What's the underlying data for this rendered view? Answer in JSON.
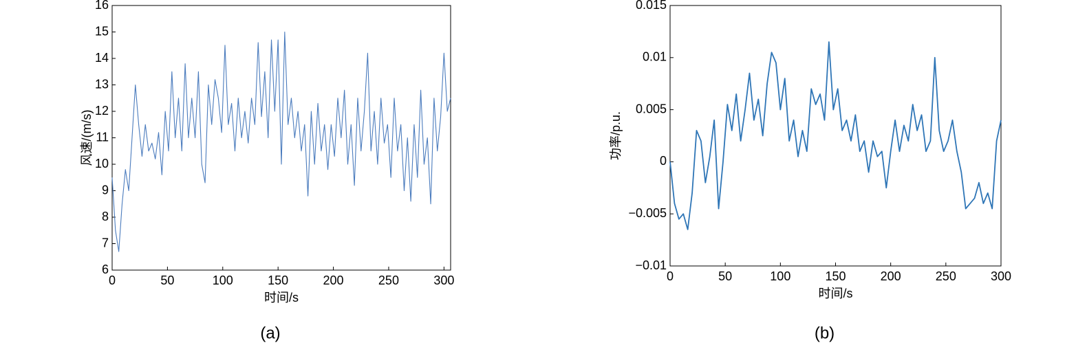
{
  "chart_data": [
    {
      "type": "line",
      "caption": "(a)",
      "xlabel": "时间/s",
      "ylabel": "风速/(m/s)",
      "color": "#4a7bbd",
      "xlim": [
        0,
        306
      ],
      "ylim": [
        6,
        16
      ],
      "xticks": [
        0,
        50,
        100,
        150,
        200,
        250,
        300
      ],
      "yticks": [
        6,
        7,
        8,
        9,
        10,
        11,
        12,
        13,
        14,
        15,
        16
      ],
      "x": [
        0,
        3,
        6,
        9,
        12,
        15,
        18,
        21,
        24,
        27,
        30,
        33,
        36,
        39,
        42,
        45,
        48,
        51,
        54,
        57,
        60,
        63,
        66,
        69,
        72,
        75,
        78,
        81,
        84,
        87,
        90,
        93,
        96,
        99,
        102,
        105,
        108,
        111,
        114,
        117,
        120,
        123,
        126,
        129,
        132,
        135,
        138,
        141,
        144,
        147,
        150,
        153,
        156,
        159,
        162,
        165,
        168,
        171,
        174,
        177,
        180,
        183,
        186,
        189,
        192,
        195,
        198,
        201,
        204,
        207,
        210,
        213,
        216,
        219,
        222,
        225,
        228,
        231,
        234,
        237,
        240,
        243,
        246,
        249,
        252,
        255,
        258,
        261,
        264,
        267,
        270,
        273,
        276,
        279,
        282,
        285,
        288,
        291,
        294,
        297,
        300,
        303,
        306
      ],
      "values": [
        9.5,
        7.5,
        6.7,
        8.5,
        9.8,
        9.0,
        11.0,
        13.0,
        11.5,
        10.3,
        11.5,
        10.5,
        10.8,
        10.2,
        11.2,
        9.6,
        12.0,
        10.5,
        13.5,
        11.0,
        12.5,
        10.5,
        13.8,
        11.0,
        12.5,
        11.0,
        13.5,
        10.0,
        9.3,
        13.0,
        11.5,
        13.2,
        12.5,
        11.2,
        14.5,
        11.5,
        12.3,
        10.5,
        12.5,
        11.0,
        12.0,
        10.8,
        12.5,
        11.5,
        14.6,
        11.8,
        13.5,
        11.0,
        14.7,
        12.0,
        14.7,
        10.0,
        15.0,
        11.5,
        12.5,
        11.0,
        12.0,
        10.5,
        11.5,
        8.8,
        12.0,
        10.0,
        12.3,
        10.5,
        11.5,
        9.8,
        11.5,
        10.3,
        12.5,
        11.0,
        12.8,
        10.0,
        11.5,
        9.2,
        12.5,
        10.5,
        12.0,
        14.2,
        10.5,
        12.0,
        10.0,
        12.5,
        10.8,
        11.5,
        9.5,
        12.5,
        10.5,
        11.5,
        9.0,
        11.0,
        8.6,
        11.5,
        9.5,
        12.8,
        10.0,
        11.0,
        8.5,
        12.5,
        10.5,
        11.8,
        14.2,
        12.0,
        12.5
      ]
    },
    {
      "type": "line",
      "caption": "(b)",
      "xlabel": "时间/s",
      "ylabel": "功率/p.u.",
      "color": "#2e75b6",
      "xlim": [
        0,
        300
      ],
      "ylim": [
        -0.01,
        0.015
      ],
      "xticks": [
        0,
        50,
        100,
        150,
        200,
        250,
        300
      ],
      "yticks": [
        {
          "value": -0.01,
          "label": "−0.01"
        },
        {
          "value": -0.005,
          "label": "−0.005"
        },
        0,
        0.005,
        0.01,
        0.015
      ],
      "x": [
        0,
        4,
        8,
        12,
        16,
        20,
        24,
        28,
        32,
        36,
        40,
        44,
        48,
        52,
        56,
        60,
        64,
        68,
        72,
        76,
        80,
        84,
        88,
        92,
        96,
        100,
        104,
        108,
        112,
        116,
        120,
        124,
        128,
        132,
        136,
        140,
        144,
        148,
        152,
        156,
        160,
        164,
        168,
        172,
        176,
        180,
        184,
        188,
        192,
        196,
        200,
        204,
        208,
        212,
        216,
        220,
        224,
        228,
        232,
        236,
        240,
        244,
        248,
        252,
        256,
        260,
        264,
        268,
        272,
        276,
        280,
        284,
        288,
        292,
        296,
        300
      ],
      "values": [
        0,
        -0.004,
        -0.0055,
        -0.005,
        -0.0065,
        -0.003,
        0.003,
        0.002,
        -0.002,
        0.0005,
        0.004,
        -0.0045,
        0,
        0.0055,
        0.003,
        0.0065,
        0.002,
        0.005,
        0.0085,
        0.004,
        0.006,
        0.0025,
        0.0075,
        0.0105,
        0.0095,
        0.005,
        0.008,
        0.002,
        0.004,
        0.0005,
        0.003,
        0.001,
        0.007,
        0.0055,
        0.0065,
        0.004,
        0.0115,
        0.005,
        0.007,
        0.003,
        0.004,
        0.002,
        0.0045,
        0.001,
        0.002,
        -0.001,
        0.002,
        0.0005,
        0.001,
        -0.0025,
        0.001,
        0.004,
        0.001,
        0.0035,
        0.002,
        0.0055,
        0.003,
        0.0045,
        0.001,
        0.002,
        0.01,
        0.003,
        0.001,
        0.002,
        0.004,
        0.001,
        -0.001,
        -0.0045,
        -0.004,
        -0.0035,
        -0.002,
        -0.004,
        -0.003,
        -0.0045,
        0.002,
        0.004
      ]
    }
  ]
}
